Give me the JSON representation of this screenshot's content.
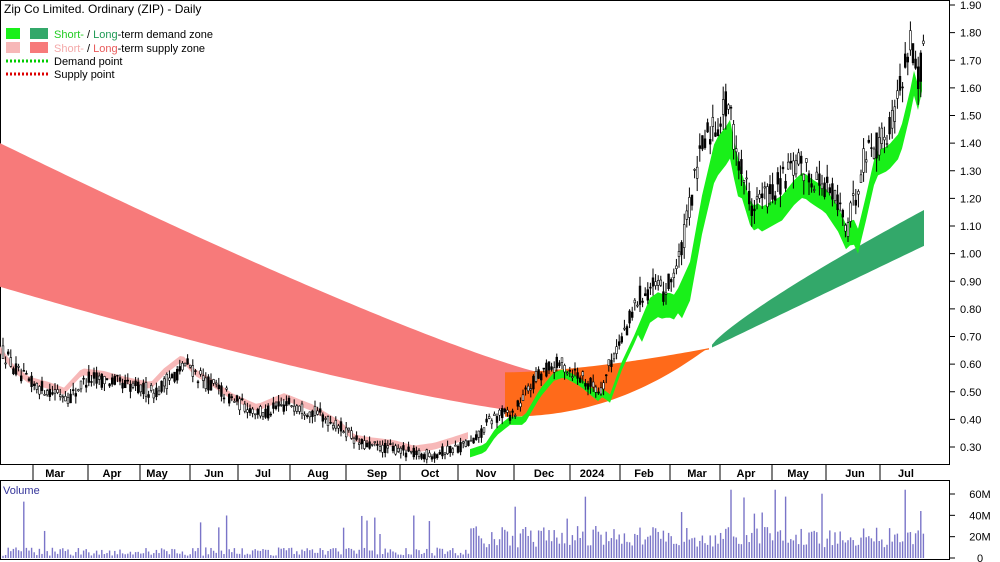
{
  "title": "Zip Co Limited. Ordinary (ZIP) - Daily",
  "legend": {
    "row1": {
      "short": "Short-",
      "sep": " / ",
      "long": "Long",
      "rest": "-term demand zone",
      "short_color": "#22cc22",
      "long_color": "#22aa22"
    },
    "row2": {
      "short": "Short-",
      "sep": " / ",
      "long": "Long",
      "rest": "-term supply zone",
      "short_color": "#f4a9a9",
      "long_color": "#e85a5a"
    },
    "row3": "Demand point",
    "row4": "Supply point"
  },
  "volume_label": "Volume",
  "colors": {
    "short_demand": "#19f019",
    "long_demand": "#33a86a",
    "short_supply": "#f7b8b8",
    "long_supply": "#f77a7a",
    "orange_zone": "#ff6a1a",
    "volume_bar": "#7a74c8",
    "candle": "#000000",
    "demand_point": "#00cc00",
    "supply_point": "#dd0000"
  },
  "chart_data": [
    {
      "type": "candlestick",
      "title": "Zip Co Limited. Ordinary (ZIP) - Daily",
      "price_ticks": [
        "1.90",
        "1.80",
        "1.70",
        "1.60",
        "1.50",
        "1.40",
        "1.30",
        "1.20",
        "1.10",
        "1.00",
        "0.90",
        "0.80",
        "0.70",
        "0.60",
        "0.50",
        "0.40",
        "0.30"
      ],
      "ylim": [
        0.23,
        1.92
      ],
      "months": [
        "Mar",
        "Apr",
        "May",
        "Jun",
        "Jul",
        "Aug",
        "Sep",
        "Oct",
        "Nov",
        "Dec",
        "2024",
        "Feb",
        "Mar",
        "Apr",
        "May",
        "Jun",
        "Jul"
      ],
      "close_approx": [
        {
          "month": "Mar",
          "close": 0.55
        },
        {
          "month": "Apr",
          "close": 0.54
        },
        {
          "month": "May",
          "close": 0.55
        },
        {
          "month": "Jun",
          "close": 0.5
        },
        {
          "month": "Jul",
          "close": 0.45
        },
        {
          "month": "Aug",
          "close": 0.43
        },
        {
          "month": "Sep",
          "close": 0.32
        },
        {
          "month": "Oct",
          "close": 0.29
        },
        {
          "month": "Nov",
          "close": 0.4
        },
        {
          "month": "Dec",
          "close": 0.55
        },
        {
          "month": "2024",
          "close": 0.52
        },
        {
          "month": "Feb",
          "close": 0.9
        },
        {
          "month": "Mar",
          "close": 1.5
        },
        {
          "month": "Apr",
          "close": 1.15
        },
        {
          "month": "May",
          "close": 1.3
        },
        {
          "month": "Jun",
          "close": 1.15
        },
        {
          "month": "Jul",
          "close": 1.75
        }
      ],
      "long_term_supply_zone": {
        "start": [
          0.88,
          1.4
        ],
        "end_nov": [
          0.4,
          0.57
        ]
      },
      "short_term_demand_zone_end": [
        1.5,
        1.57
      ],
      "long_term_demand_zone_end": [
        1.03,
        1.16
      ]
    },
    {
      "type": "bar",
      "title": "Volume",
      "volume_ticks": [
        "60M",
        "40M",
        "20M",
        "0"
      ],
      "ylim": [
        0,
        70
      ],
      "approx_max": 65
    }
  ]
}
